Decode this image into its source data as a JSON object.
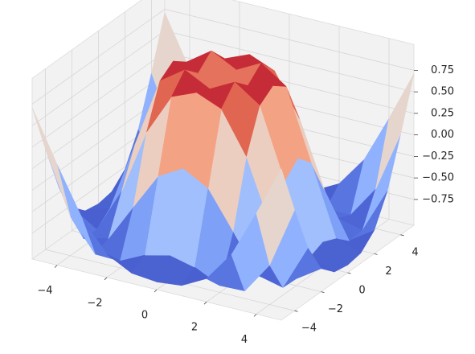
{
  "chart_data": {
    "type": "surface",
    "colormap": "coolwarm",
    "x": [
      -5,
      -4,
      -3,
      -2,
      -1,
      0,
      1,
      2,
      3,
      4,
      5
    ],
    "y": [
      -5,
      -4,
      -3,
      -2,
      -1,
      0,
      1,
      2,
      3,
      4,
      5
    ],
    "z": [
      [
        0.71,
        0.12,
        -0.43,
        -0.78,
        -0.93,
        -0.96,
        -0.93,
        -0.78,
        -0.43,
        0.12,
        0.71
      ],
      [
        0.12,
        -0.59,
        -0.96,
        -0.97,
        -0.83,
        -0.76,
        -0.83,
        -0.97,
        -0.96,
        -0.59,
        0.12
      ],
      [
        -0.43,
        -0.96,
        -0.89,
        -0.45,
        -0.02,
        0.14,
        -0.02,
        -0.45,
        -0.89,
        -0.96,
        -0.43
      ],
      [
        -0.78,
        -0.97,
        -0.45,
        0.31,
        0.79,
        0.91,
        0.79,
        0.31,
        -0.45,
        -0.97,
        -0.78
      ],
      [
        -0.93,
        -0.83,
        -0.02,
        0.79,
        0.99,
        0.84,
        0.99,
        0.79,
        -0.02,
        -0.83,
        -0.93
      ],
      [
        -0.96,
        -0.76,
        0.14,
        0.91,
        0.84,
        0,
        0.84,
        0.91,
        0.14,
        -0.76,
        -0.96
      ],
      [
        -0.93,
        -0.83,
        -0.02,
        0.79,
        0.99,
        0.84,
        0.99,
        0.79,
        -0.02,
        -0.83,
        -0.93
      ],
      [
        -0.78,
        -0.97,
        -0.45,
        0.31,
        0.79,
        0.91,
        0.79,
        0.31,
        -0.45,
        -0.97,
        -0.78
      ],
      [
        -0.43,
        -0.96,
        -0.89,
        -0.45,
        -0.02,
        0.14,
        -0.02,
        -0.45,
        -0.89,
        -0.96,
        -0.43
      ],
      [
        0.12,
        -0.59,
        -0.96,
        -0.97,
        -0.83,
        -0.76,
        -0.83,
        -0.97,
        -0.96,
        -0.59,
        0.12
      ],
      [
        0.71,
        0.12,
        -0.43,
        -0.78,
        -0.93,
        -0.96,
        -0.93,
        -0.78,
        -0.43,
        0.12,
        0.71
      ]
    ],
    "xlim": [
      -5,
      5
    ],
    "ylim": [
      -5,
      5
    ],
    "zlim": [
      -1.05,
      1.05
    ],
    "xticks": [
      {
        "value": -4,
        "label": "−4"
      },
      {
        "value": -2,
        "label": "−2"
      },
      0,
      2,
      4
    ],
    "yticks": [
      {
        "value": -4,
        "label": "−4"
      },
      {
        "value": -2,
        "label": "−2"
      },
      0,
      2,
      4
    ],
    "zticks": [
      {
        "value": -0.75,
        "label": "−0.75"
      },
      {
        "value": -0.5,
        "label": "−0.50"
      },
      {
        "value": -0.25,
        "label": "−0.25"
      },
      {
        "value": 0,
        "label": "0.00"
      },
      0.25,
      {
        "value": 0.5,
        "label": "0.50"
      },
      0.75
    ],
    "grid": true
  }
}
